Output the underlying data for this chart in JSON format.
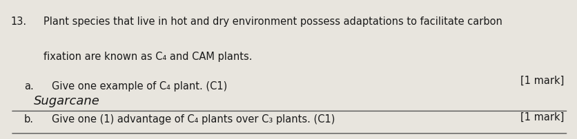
{
  "background_color": "#e8e5de",
  "question_number": "13.",
  "question_text_line1": "Plant species that live in hot and dry environment possess adaptations to facilitate carbon",
  "question_text_line2": "fixation are known as C₄ and CAM plants.",
  "mark_a": "[1 mark]",
  "mark_b": "[1 mark]",
  "part_a_label": "a.",
  "part_a_text": "Give one example of C₄ plant. (C1)",
  "part_a_answer": "Sugarcane",
  "part_b_label": "b.",
  "part_b_text": "Give one (1) advantage of C₄ plants over C₃ plants. (C1)",
  "font_size_question": 10.5,
  "font_size_answer": 13,
  "font_size_mark": 10.5,
  "text_color": "#1a1a1a",
  "line_color": "#555555",
  "figsize": [
    8.36,
    2.03
  ],
  "dpi": 100
}
